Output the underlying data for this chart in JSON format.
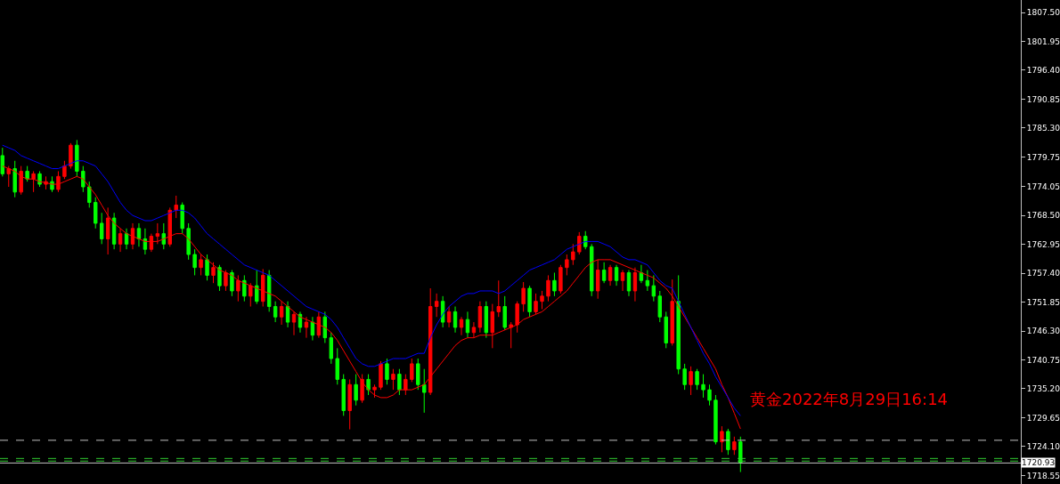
{
  "chart_data": {
    "type": "candlestick",
    "annotations": [
      "黄金2022年8月29日16:14"
    ],
    "categories": [
      null,
      null,
      null,
      null,
      null,
      null,
      null,
      null,
      null,
      null,
      null,
      null,
      null,
      null,
      null,
      null,
      null,
      null,
      null,
      null,
      null,
      null,
      null,
      null,
      null,
      null,
      null,
      null,
      null,
      null,
      null,
      null,
      null,
      null,
      null,
      null,
      null,
      null,
      null,
      null,
      null,
      null,
      null,
      null,
      null,
      null,
      null,
      null,
      null,
      null,
      null,
      null,
      null,
      null,
      null,
      null,
      null,
      null,
      null,
      null,
      null,
      null,
      null,
      null,
      null,
      null,
      null,
      null,
      null,
      null,
      null,
      null,
      null,
      null,
      null,
      null,
      null,
      null,
      null,
      null,
      null,
      null,
      null,
      null,
      null,
      null,
      null,
      null,
      null,
      null,
      null,
      null,
      null,
      null,
      null,
      null,
      null,
      null,
      null,
      null,
      null,
      null,
      null,
      null,
      null,
      null,
      null,
      null,
      null,
      null,
      null,
      null,
      null,
      null,
      null,
      null,
      null,
      null,
      null,
      null
    ],
    "colors": [
      "#00ff00",
      "#ff0000",
      "#00ff00",
      "#ff0000",
      "#00ff00",
      "#ff0000",
      "#00ff00",
      "#ff0000",
      "#00ff00",
      "#ff0000",
      "#ff0000",
      "#ff0000",
      "#00ff00",
      "#00ff00",
      "#00ff00",
      "#00ff00",
      "#00ff00",
      "#ff0000",
      "#00ff00",
      "#ff0000",
      "#00ff00",
      "#ff0000",
      "#00ff00",
      "#00ff00",
      "#ff0000",
      "#ff0000",
      "#00ff00",
      "#ff0000",
      "#ff0000",
      "#00ff00",
      "#00ff00",
      "#00ff00",
      "#ff0000",
      "#00ff00",
      "#ff0000",
      "#00ff00",
      "#ff0000",
      "#00ff00",
      "#ff0000",
      "#00ff00",
      "#ff0000",
      "#00ff00",
      "#ff0000",
      "#00ff00",
      "#00ff00",
      "#ff0000",
      "#00ff00",
      "#ff0000",
      "#00ff00",
      "#ff0000",
      "#00ff00",
      "#ff0000",
      "#00ff00",
      "#00ff00",
      "#00ff00",
      "#00ff00",
      "#ff0000",
      "#00ff00",
      "#ff0000",
      "#00ff00",
      "#ff0000",
      "#ff0000",
      "#00ff00",
      "#ff0000",
      "#00ff00",
      "#ff0000",
      "#ff0000",
      "#00ff00",
      "#00ff00",
      "#ff0000",
      "#ff0000",
      "#00ff00",
      "#ff0000",
      "#00ff00",
      "#ff0000",
      "#00ff00",
      "#ff0000",
      "#ff0000",
      "#00ff00",
      "#ff0000",
      "#ff0000",
      "#00ff00",
      "#ff0000",
      "#ff0000",
      "#ff0000",
      "#00ff00",
      "#ff0000",
      "#ff0000",
      "#ff0000",
      "#00ff00",
      "#ff0000",
      "#ff0000",
      "#ff0000",
      "#ff0000",
      "#00ff00",
      "#00ff00",
      "#ff0000",
      "#00ff00",
      "#ff0000",
      "#00ff00",
      "#ff0000",
      "#00ff00",
      "#ff0000",
      "#00ff00",
      "#00ff00",
      "#00ff00",
      "#00ff00",
      "#00ff00",
      "#ff0000",
      "#00ff00",
      "#00ff00",
      "#ff0000",
      "#00ff00",
      "#00ff00",
      "#00ff00",
      "#00ff00",
      "#ff0000",
      "#00ff00",
      "#ff0000",
      "#00ff00"
    ],
    "ohlc": [
      [
        1780,
        1781.5,
        1776,
        1776.5
      ],
      [
        1776.5,
        1778,
        1774,
        1777.5
      ],
      [
        1777.5,
        1779,
        1772,
        1773
      ],
      [
        1773,
        1778,
        1772.5,
        1777
      ],
      [
        1777,
        1778,
        1775,
        1775.5
      ],
      [
        1775.5,
        1777,
        1773,
        1776.5
      ],
      [
        1776.5,
        1777,
        1774,
        1774.5
      ],
      [
        1774.5,
        1776,
        1773.5,
        1775
      ],
      [
        1775,
        1776,
        1773,
        1773.5
      ],
      [
        1773.5,
        1777,
        1773,
        1776
      ],
      [
        1776,
        1779,
        1775.5,
        1778
      ],
      [
        1778,
        1782.4,
        1777.5,
        1782
      ],
      [
        1782,
        1783,
        1776,
        1777
      ],
      [
        1777,
        1778,
        1773,
        1774
      ],
      [
        1774,
        1775,
        1770,
        1771
      ],
      [
        1771,
        1772,
        1766,
        1767
      ],
      [
        1767,
        1769,
        1763,
        1764
      ],
      [
        1764,
        1770,
        1761,
        1768
      ],
      [
        1768,
        1769,
        1762,
        1763
      ],
      [
        1763,
        1766,
        1761.5,
        1765
      ],
      [
        1765,
        1766,
        1762,
        1763
      ],
      [
        1763,
        1767,
        1762,
        1766
      ],
      [
        1766,
        1767,
        1762.5,
        1764
      ],
      [
        1764,
        1766,
        1761,
        1762
      ],
      [
        1762,
        1765,
        1761.5,
        1764.5
      ],
      [
        1764.5,
        1767,
        1763,
        1765
      ],
      [
        1765,
        1767,
        1762,
        1763
      ],
      [
        1763,
        1770,
        1762.5,
        1769.5
      ],
      [
        1769.5,
        1772.3,
        1768,
        1770.5
      ],
      [
        1770.5,
        1771,
        1765,
        1766
      ],
      [
        1766,
        1767,
        1760,
        1761
      ],
      [
        1761,
        1762,
        1757,
        1758.5
      ],
      [
        1758.5,
        1761,
        1757,
        1760
      ],
      [
        1760,
        1761,
        1756,
        1757
      ],
      [
        1757,
        1759.5,
        1755.5,
        1758.5
      ],
      [
        1758.5,
        1759,
        1754,
        1755
      ],
      [
        1755,
        1758,
        1754,
        1757.5
      ],
      [
        1757.5,
        1758,
        1753,
        1754
      ],
      [
        1754,
        1757,
        1752,
        1756
      ],
      [
        1756,
        1757,
        1752,
        1753
      ],
      [
        1753,
        1755.5,
        1751,
        1755
      ],
      [
        1755,
        1758,
        1751.5,
        1752
      ],
      [
        1752,
        1758.2,
        1751,
        1757
      ],
      [
        1757,
        1758,
        1750,
        1751
      ],
      [
        1751,
        1752,
        1748,
        1749
      ],
      [
        1749,
        1752,
        1747.5,
        1751
      ],
      [
        1751,
        1752,
        1747,
        1748
      ],
      [
        1748,
        1750,
        1745.5,
        1749.5
      ],
      [
        1749.5,
        1750,
        1746,
        1747
      ],
      [
        1747,
        1749,
        1745,
        1748
      ],
      [
        1748,
        1749,
        1744.5,
        1745.5
      ],
      [
        1745.5,
        1750,
        1745,
        1749
      ],
      [
        1749,
        1750,
        1744,
        1745
      ],
      [
        1745,
        1746,
        1740,
        1741
      ],
      [
        1741,
        1743,
        1736,
        1737
      ],
      [
        1737,
        1738,
        1730,
        1731
      ],
      [
        1731,
        1737,
        1727.4,
        1736
      ],
      [
        1736,
        1738,
        1732,
        1733
      ],
      [
        1733,
        1738,
        1732.5,
        1737
      ],
      [
        1737,
        1738,
        1734,
        1735
      ],
      [
        1735,
        1736,
        1733.5,
        1735.5
      ],
      [
        1735.5,
        1740.5,
        1735,
        1740
      ],
      [
        1740,
        1741,
        1736,
        1737
      ],
      [
        1737,
        1739,
        1735,
        1738
      ],
      [
        1738,
        1739,
        1734,
        1735
      ],
      [
        1735,
        1738,
        1734,
        1737
      ],
      [
        1737,
        1741,
        1736.5,
        1740
      ],
      [
        1740,
        1741,
        1735,
        1736
      ],
      [
        1736,
        1739,
        1730.6,
        1734.5
      ],
      [
        1734.5,
        1754.5,
        1734,
        1751
      ],
      [
        1751,
        1753.5,
        1749,
        1752
      ],
      [
        1752,
        1753,
        1747,
        1748
      ],
      [
        1748,
        1751,
        1747,
        1750
      ],
      [
        1750,
        1751,
        1746,
        1747
      ],
      [
        1747,
        1749,
        1745.5,
        1748.5
      ],
      [
        1748.5,
        1750,
        1745,
        1746
      ],
      [
        1746,
        1748,
        1745,
        1747
      ],
      [
        1747,
        1752,
        1746,
        1751
      ],
      [
        1751,
        1752,
        1745,
        1746
      ],
      [
        1746,
        1751.5,
        1743,
        1750
      ],
      [
        1750,
        1756,
        1749,
        1751
      ],
      [
        1751,
        1753,
        1746.5,
        1747
      ],
      [
        1747,
        1748,
        1743,
        1747.5
      ],
      [
        1747.5,
        1752,
        1746,
        1751.5
      ],
      [
        1751.5,
        1755.7,
        1750,
        1754.5
      ],
      [
        1754.5,
        1755,
        1749,
        1750
      ],
      [
        1750,
        1753.5,
        1749.5,
        1752
      ],
      [
        1752,
        1754,
        1750.5,
        1753
      ],
      [
        1753,
        1757,
        1752,
        1756
      ],
      [
        1756,
        1757.5,
        1753,
        1754
      ],
      [
        1754,
        1759,
        1753.5,
        1758.5
      ],
      [
        1758.5,
        1761,
        1757,
        1760
      ],
      [
        1760,
        1763,
        1759,
        1761.5
      ],
      [
        1761.5,
        1765.3,
        1761,
        1764.5
      ],
      [
        1764.5,
        1765.5,
        1762,
        1762.5
      ],
      [
        1762.5,
        1763,
        1753,
        1754
      ],
      [
        1754,
        1760,
        1752.5,
        1758
      ],
      [
        1758,
        1759.5,
        1755.5,
        1756
      ],
      [
        1756,
        1759,
        1755,
        1758.5
      ],
      [
        1758.5,
        1759,
        1755,
        1756
      ],
      [
        1756,
        1758,
        1754,
        1757.5
      ],
      [
        1757.5,
        1758,
        1753,
        1754
      ],
      [
        1754,
        1758.5,
        1752,
        1757.5
      ],
      [
        1757.5,
        1759,
        1755.5,
        1756
      ],
      [
        1756,
        1758,
        1754,
        1755
      ],
      [
        1755,
        1757,
        1752,
        1753
      ],
      [
        1753,
        1754,
        1748,
        1749
      ],
      [
        1749,
        1750,
        1743,
        1744
      ],
      [
        1744,
        1756.2,
        1743.5,
        1752
      ],
      [
        1752,
        1757,
        1738,
        1739
      ],
      [
        1739,
        1740,
        1735,
        1736
      ],
      [
        1736,
        1739.5,
        1734,
        1738.5
      ],
      [
        1738.5,
        1739,
        1735,
        1736
      ],
      [
        1736,
        1738,
        1733.5,
        1735
      ],
      [
        1735,
        1736,
        1732,
        1733
      ],
      [
        1733,
        1734,
        1724.5,
        1725
      ],
      [
        1725,
        1728,
        1723,
        1727
      ],
      [
        1727,
        1727.5,
        1722.5,
        1723.5
      ],
      [
        1723.5,
        1726,
        1722.5,
        1725
      ],
      [
        1725,
        1726,
        1719.2,
        1720.93
      ]
    ],
    "series": [
      {
        "type": "line",
        "color": "#ff0000",
        "values": [
          1778,
          1777.5,
          1777,
          1776,
          1775.5,
          1775.5,
          1775,
          1774.8,
          1774.5,
          1774.5,
          1775,
          1775.5,
          1776,
          1775.5,
          1774,
          1772.5,
          1770.5,
          1768.5,
          1767,
          1766,
          1765,
          1764.5,
          1764,
          1763.5,
          1763.5,
          1763.5,
          1764,
          1764.5,
          1765,
          1765,
          1764,
          1762.5,
          1761,
          1760,
          1759,
          1758,
          1757.5,
          1757,
          1756,
          1755.5,
          1755,
          1754.5,
          1754,
          1753.5,
          1753,
          1752,
          1751,
          1750,
          1749,
          1748.5,
          1748,
          1747.5,
          1747,
          1746,
          1744.5,
          1742.5,
          1740.5,
          1738.5,
          1736.5,
          1735,
          1734,
          1733.5,
          1733.5,
          1734,
          1735,
          1735,
          1735,
          1735.5,
          1736,
          1737.5,
          1739,
          1740.5,
          1742,
          1743.5,
          1744.5,
          1745,
          1745,
          1745.5,
          1745.5,
          1745.5,
          1746,
          1746.5,
          1747,
          1747.5,
          1748.5,
          1749,
          1749.5,
          1750,
          1751,
          1752,
          1753,
          1754,
          1755.5,
          1757,
          1758.5,
          1759.5,
          1760,
          1760,
          1760,
          1759.5,
          1759,
          1758.5,
          1758,
          1757.5,
          1757,
          1756.5,
          1755.5,
          1754.5,
          1753,
          1751,
          1749,
          1747,
          1745,
          1743,
          1741,
          1739,
          1736,
          1733.5,
          1730.5,
          1727.5
        ]
      },
      {
        "type": "line",
        "color": "#0000ff",
        "values": [
          1782,
          1781.5,
          1781,
          1780,
          1779.5,
          1779,
          1778.5,
          1778,
          1777.5,
          1777.5,
          1778,
          1778.5,
          1779,
          1779,
          1778.5,
          1778,
          1776.5,
          1775,
          1773,
          1771,
          1769.5,
          1768.5,
          1768,
          1767.5,
          1767.5,
          1768,
          1768.5,
          1769,
          1769.5,
          1769.5,
          1769,
          1768,
          1766.5,
          1765,
          1764,
          1763,
          1762,
          1761,
          1760,
          1759,
          1758.5,
          1758,
          1757.5,
          1757,
          1756,
          1755,
          1754,
          1753,
          1752,
          1751,
          1750.5,
          1750,
          1749.5,
          1748.5,
          1747,
          1745,
          1743,
          1741,
          1740,
          1739.5,
          1739.5,
          1740,
          1740.5,
          1741,
          1741,
          1741,
          1741.5,
          1742,
          1742,
          1745,
          1747.5,
          1749.5,
          1751,
          1752,
          1753,
          1753.5,
          1753.5,
          1754,
          1754,
          1754,
          1753.5,
          1754,
          1755,
          1756,
          1757,
          1758,
          1758.5,
          1759,
          1759.5,
          1760,
          1761,
          1762,
          1762.5,
          1763,
          1763.5,
          1763.5,
          1763.5,
          1763,
          1762.5,
          1761.5,
          1760.5,
          1760,
          1760,
          1759.5,
          1759,
          1757.5,
          1756,
          1755,
          1754.5,
          1752,
          1749.5,
          1747,
          1744.5,
          1742,
          1740,
          1737.5,
          1735.5,
          1733.5,
          1731.5,
          1730
        ]
      }
    ],
    "ylim": [
      1716.9,
      1809.9
    ],
    "yticks": [
      {
        "value": 1807.5,
        "label": "1807.50"
      },
      {
        "value": 1801.95,
        "label": "1801.95"
      },
      {
        "value": 1796.4,
        "label": "1796.40"
      },
      {
        "value": 1790.85,
        "label": "1790.85"
      },
      {
        "value": 1785.3,
        "label": "1785.30"
      },
      {
        "value": 1779.75,
        "label": "1779.75"
      },
      {
        "value": 1774.05,
        "label": "1774.05"
      },
      {
        "value": 1768.5,
        "label": "1768.50"
      },
      {
        "value": 1762.95,
        "label": "1762.95"
      },
      {
        "value": 1757.4,
        "label": "1757.40"
      },
      {
        "value": 1751.85,
        "label": "1751.85"
      },
      {
        "value": 1746.3,
        "label": "1746.30"
      },
      {
        "value": 1740.75,
        "label": "1740.75"
      },
      {
        "value": 1735.2,
        "label": "1735.20"
      },
      {
        "value": 1729.65,
        "label": "1729.65"
      },
      {
        "value": 1724.1,
        "label": "1724.10"
      },
      {
        "value": 1718.55,
        "label": "1718.55"
      }
    ],
    "ref_lines": [
      {
        "axis": "y",
        "value": 1725.3,
        "color": "#c0c0c0",
        "line_style": "dashed"
      },
      {
        "axis": "y",
        "value": 1721.8,
        "color": "#32cd32",
        "line_style": "dashed"
      },
      {
        "axis": "y",
        "value": 1721.3,
        "color": "#32cd32",
        "line_style": "dashed"
      },
      {
        "axis": "y",
        "value": 1720.93,
        "color": "#c0c0c0",
        "line_style": "solid",
        "label": "1720.93"
      }
    ],
    "tick_labels": "y",
    "grid": false
  }
}
